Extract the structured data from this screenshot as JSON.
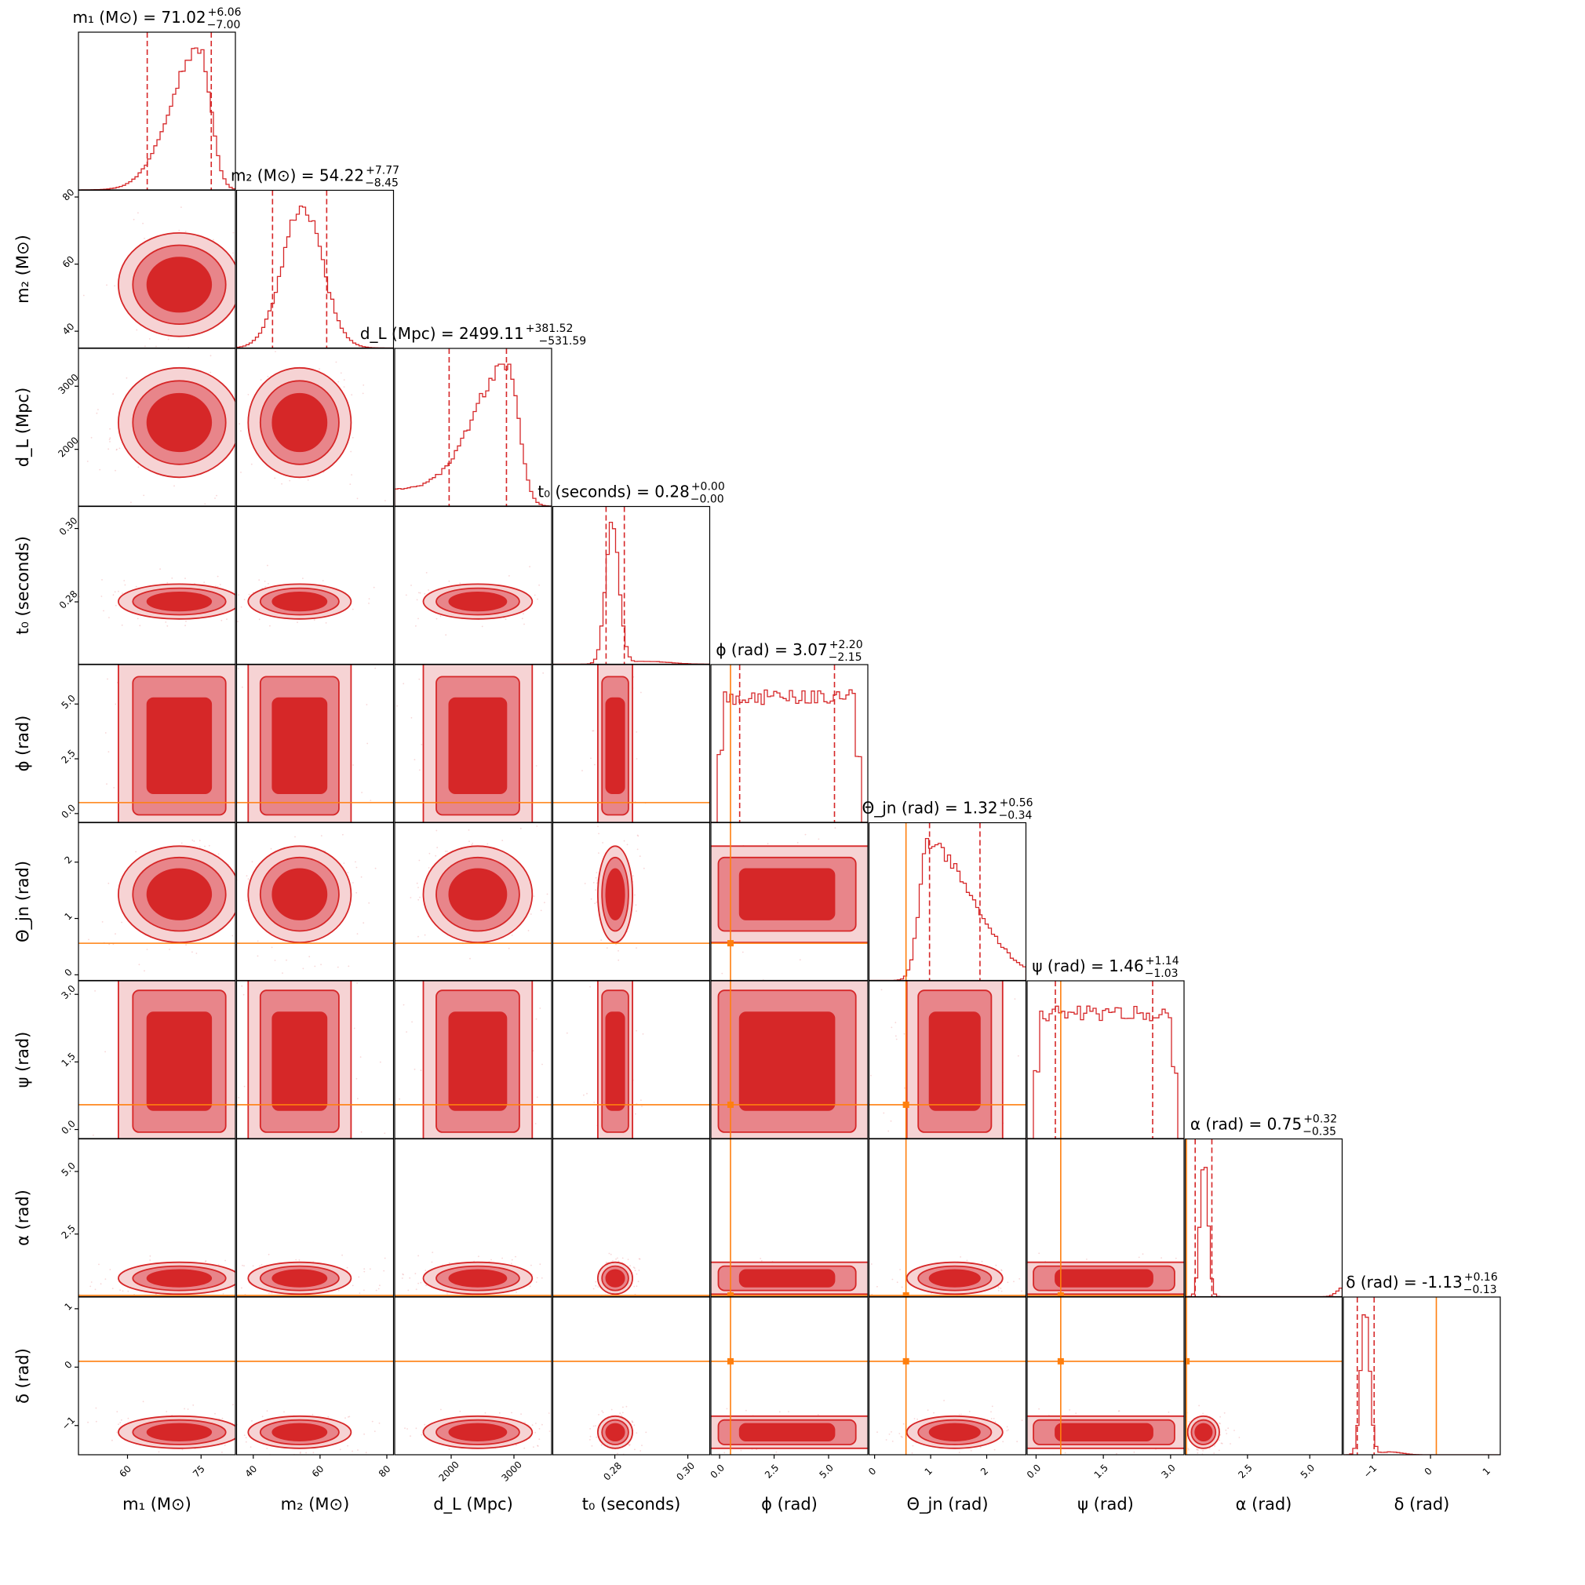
{
  "chart_data": {
    "type": "corner",
    "colors": {
      "posterior": "#d62728",
      "truth": "#ff7f0e"
    },
    "parameters": [
      {
        "id": "m1",
        "label": "m₁ (M⊙)",
        "title": "m₁ (M⊙) = 71.02",
        "median": 71.02,
        "plus": "+6.06",
        "minus": "−7.00",
        "range": [
          50,
          82
        ],
        "ticks": [
          60,
          75
        ],
        "tick_labels": [
          "60",
          "75"
        ],
        "quantiles": [
          64.02,
          77.08
        ],
        "truth": null,
        "shape": "m1"
      },
      {
        "id": "m2",
        "label": "m₂ (M⊙)",
        "title": "m₂ (M⊙) = 54.22",
        "median": 54.22,
        "plus": "+7.77",
        "minus": "−8.45",
        "range": [
          35,
          82
        ],
        "ticks": [
          40,
          60,
          80
        ],
        "tick_labels": [
          "40",
          "60",
          "80"
        ],
        "quantiles": [
          45.77,
          61.99
        ],
        "truth": null,
        "shape": "m2"
      },
      {
        "id": "dL",
        "label": "d_L (Mpc)",
        "title": "d_L (Mpc) = 2499.11",
        "median": 2499.11,
        "plus": "+381.52",
        "minus": "−531.59",
        "range": [
          1100,
          3600
        ],
        "ticks": [
          2000,
          3000
        ],
        "tick_labels": [
          "2000",
          "3000"
        ],
        "quantiles": [
          1967.52,
          2880.63
        ],
        "truth": null,
        "shape": "dL"
      },
      {
        "id": "t0",
        "label": "t₀ (seconds)",
        "title": "t₀ (seconds) = 0.28",
        "median": 0.28,
        "plus": "+0.00",
        "minus": "−0.00",
        "range": [
          0.263,
          0.306
        ],
        "ticks": [
          0.28,
          0.3
        ],
        "tick_labels": [
          "0.28",
          "0.30"
        ],
        "quantiles": [
          0.2776,
          0.2826
        ],
        "truth": null,
        "shape": "t0"
      },
      {
        "id": "phi",
        "label": "ϕ (rad)",
        "title": "ϕ (rad) = 3.07",
        "median": 3.07,
        "plus": "+2.20",
        "minus": "−2.15",
        "range": [
          -0.4,
          6.8
        ],
        "ticks": [
          0.0,
          2.5,
          5.0
        ],
        "tick_labels": [
          "0.0",
          "2.5",
          "5.0"
        ],
        "quantiles": [
          0.92,
          5.27
        ],
        "truth": 0.5,
        "shape": "flat"
      },
      {
        "id": "theta_jn",
        "label": "Θ_jn (rad)",
        "title": "Θ_jn (rad) = 1.32",
        "median": 1.32,
        "plus": "+0.56",
        "minus": "−0.34",
        "range": [
          -0.1,
          2.7
        ],
        "ticks": [
          0,
          1,
          2
        ],
        "tick_labels": [
          "0",
          "1",
          "2"
        ],
        "quantiles": [
          0.98,
          1.88
        ],
        "truth": 0.56,
        "shape": "theta"
      },
      {
        "id": "psi",
        "label": "ψ (rad)",
        "title": "ψ (rad) = 1.46",
        "median": 1.46,
        "plus": "+1.14",
        "minus": "−1.03",
        "range": [
          -0.2,
          3.3
        ],
        "ticks": [
          0.0,
          1.5,
          3.0
        ],
        "tick_labels": [
          "0.0",
          "1.5",
          "3.0"
        ],
        "quantiles": [
          0.43,
          2.6
        ],
        "truth": 0.55,
        "shape": "flat"
      },
      {
        "id": "alpha",
        "label": "α (rad)",
        "title": "α (rad) = 0.75",
        "median": 0.75,
        "plus": "+0.32",
        "minus": "−0.35",
        "range": [
          0,
          6.3
        ],
        "ticks": [
          2.5,
          5.0
        ],
        "tick_labels": [
          "2.5",
          "5.0"
        ],
        "quantiles": [
          0.4,
          1.07
        ],
        "truth": 0.05,
        "shape": "alpha"
      },
      {
        "id": "delta",
        "label": "δ (rad)",
        "title": "δ (rad) = −1.13",
        "median": -1.13,
        "plus": "+0.16",
        "minus": "−0.13",
        "range": [
          -1.5,
          1.2
        ],
        "ticks": [
          -1,
          0,
          1
        ],
        "tick_labels": [
          "−1",
          "0",
          "1"
        ],
        "quantiles": [
          -1.26,
          -0.97
        ],
        "truth": 0.1,
        "shape": "delta"
      }
    ]
  }
}
